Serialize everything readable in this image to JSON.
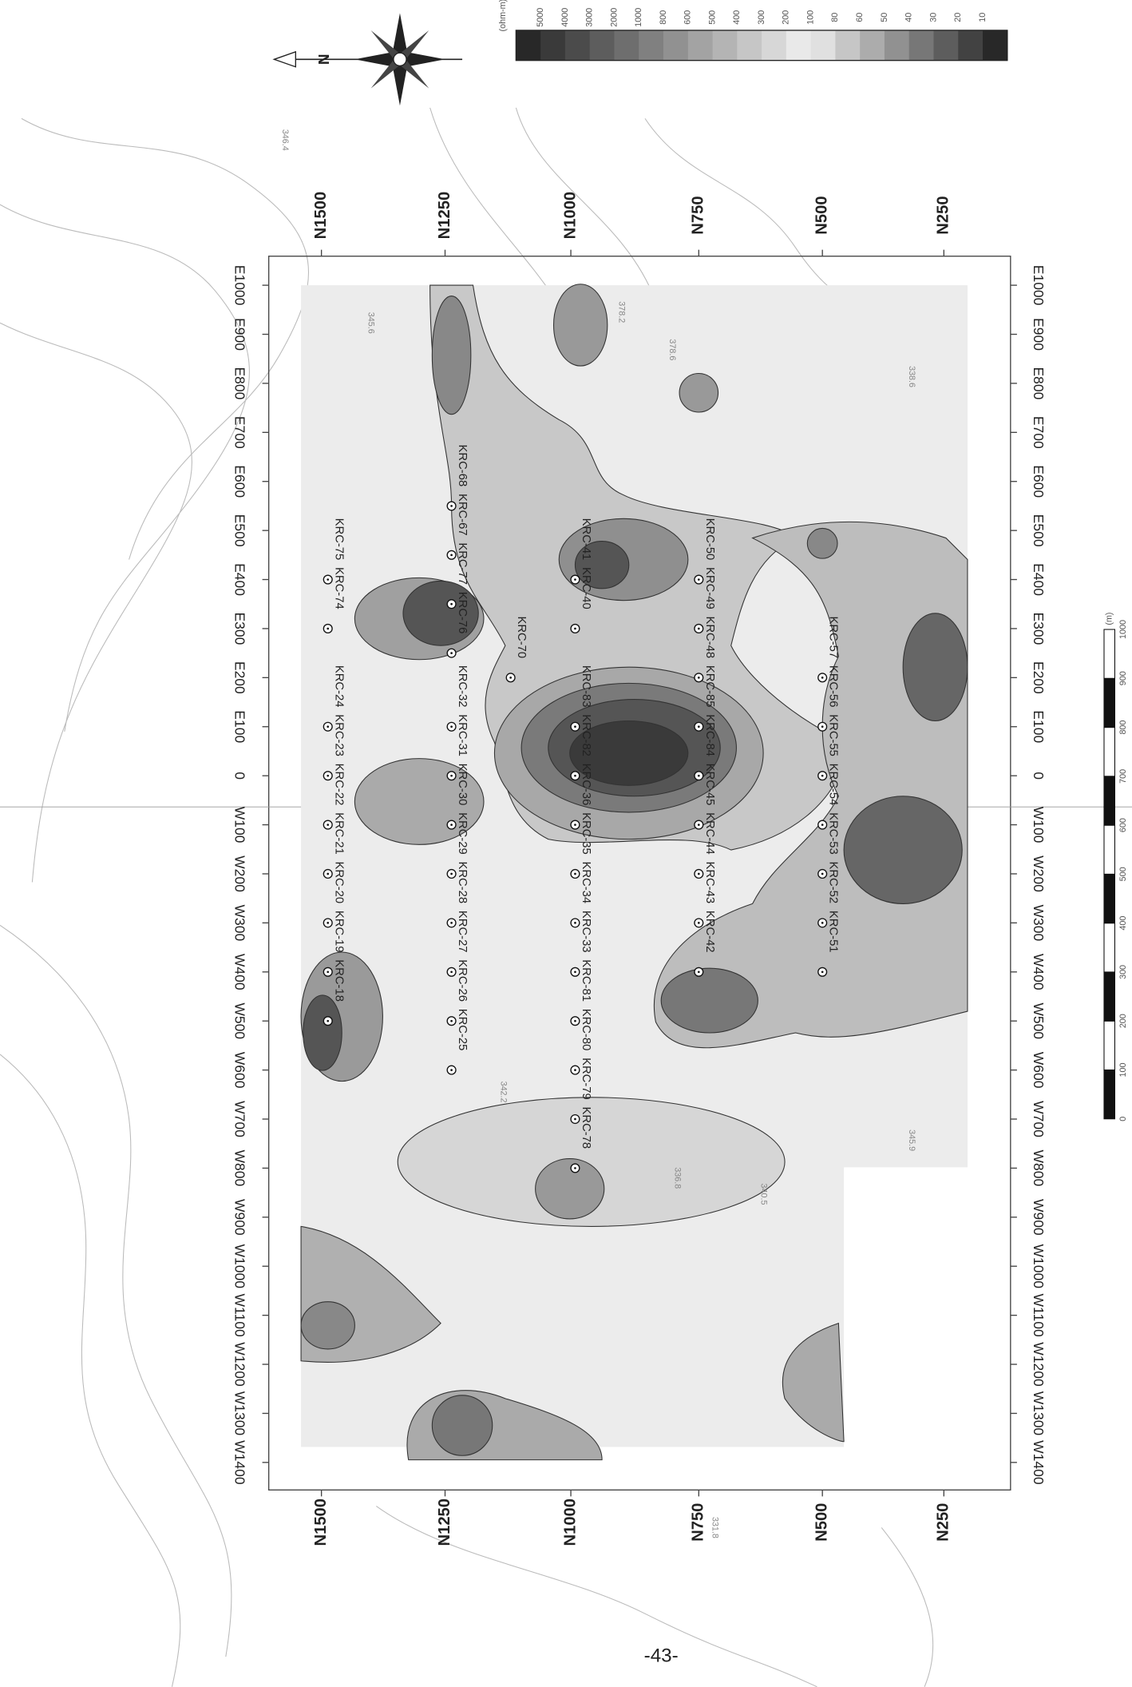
{
  "legend": {
    "unit": "(ohm-m)",
    "labels": [
      "5000",
      "4000",
      "3000",
      "2000",
      "1000",
      "800",
      "600",
      "500",
      "400",
      "300",
      "200",
      "100",
      "80",
      "60",
      "50",
      "40",
      "30",
      "20",
      "10"
    ]
  },
  "compass": {
    "north": "N"
  },
  "grid": {
    "northings": [
      "N1500",
      "N1250",
      "N1000",
      "N750",
      "N500",
      "N250"
    ],
    "eastings": [
      "E1000",
      "E900",
      "E800",
      "E700",
      "E600",
      "E500",
      "E400",
      "E300",
      "E200",
      "E100",
      "0",
      "W100",
      "W200",
      "W300",
      "W400",
      "W500",
      "W600",
      "W700",
      "W800",
      "W900",
      "W1000",
      "W1100",
      "W1200",
      "W1300",
      "W1400"
    ]
  },
  "boreholes": [
    "KRC-75",
    "KRC-74",
    "KRC-24",
    "KRC-23",
    "KRC-22",
    "KRC-21",
    "KRC-20",
    "KRC-19",
    "KRC-18",
    "KRC-68",
    "KRC-67",
    "KRC-77",
    "KRC-76",
    "KRC-32",
    "KRC-31",
    "KRC-30",
    "KRC-29",
    "KRC-28",
    "KRC-27",
    "KRC-26",
    "KRC-25",
    "KRC-41",
    "KRC-40",
    "KRC-70",
    "KRC-83",
    "KRC-82",
    "KRC-36",
    "KRC-35",
    "KRC-34",
    "KRC-33",
    "KRC-81",
    "KRC-80",
    "KRC-79",
    "KRC-78",
    "KRC-50",
    "KRC-49",
    "KRC-48",
    "KRC-85",
    "KRC-84",
    "KRC-45",
    "KRC-44",
    "KRC-43",
    "KRC-42",
    "KRC-57",
    "KRC-56",
    "KRC-55",
    "KRC-54",
    "KRC-53",
    "KRC-52",
    "KRC-51"
  ],
  "contour_labels": [
    "346.4",
    "378.2",
    "378.6",
    "345.6",
    "338.6",
    "342.2",
    "336.8",
    "340.5",
    "345.9",
    "331.8"
  ],
  "scale": {
    "unit": "(m)",
    "labels": [
      "0",
      "100",
      "200",
      "300",
      "400",
      "500",
      "600",
      "700",
      "800",
      "900",
      "1000"
    ]
  },
  "page_number": "-43-"
}
